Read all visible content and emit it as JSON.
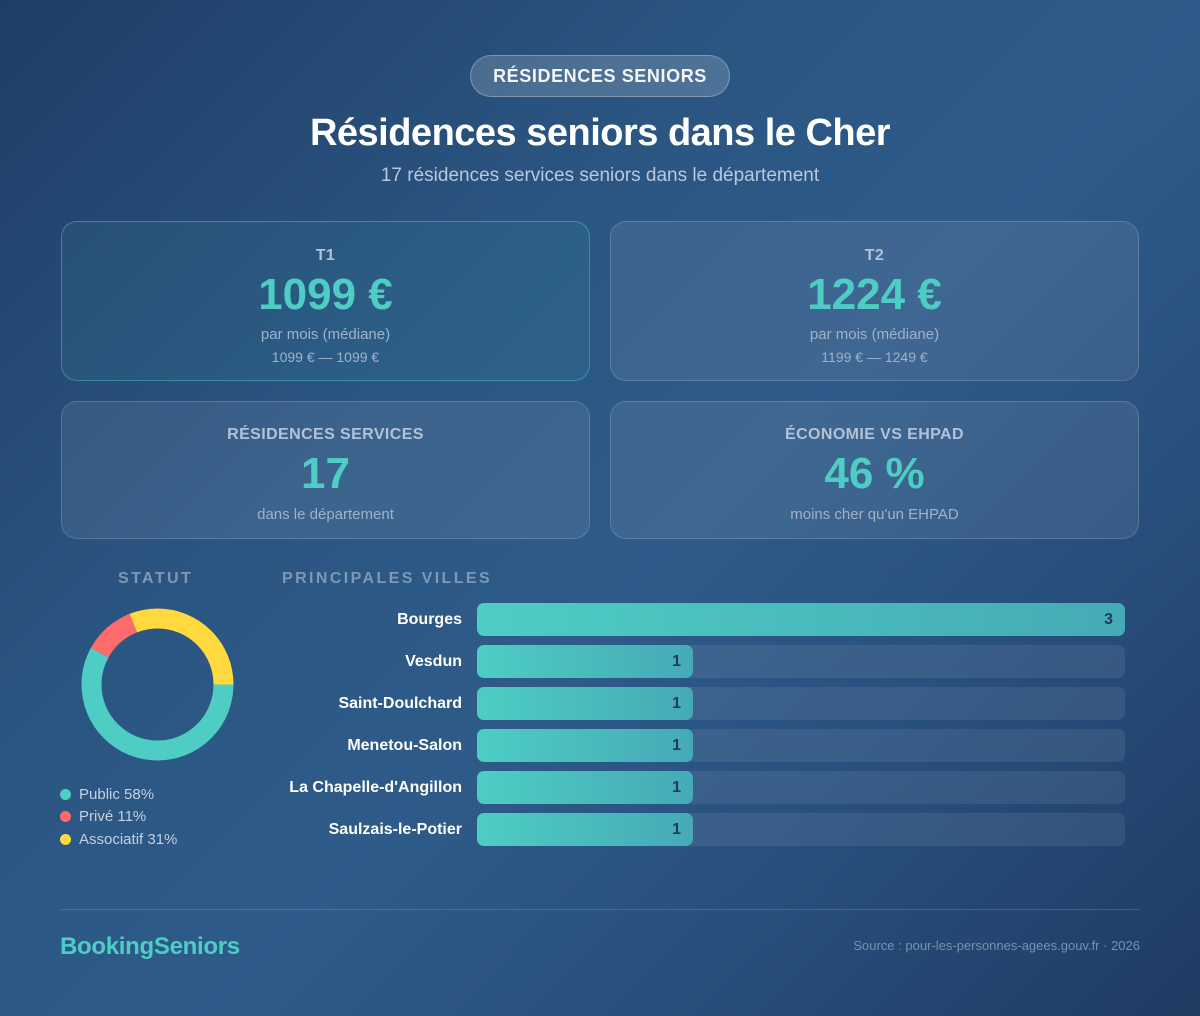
{
  "header": {
    "badge": "RÉSIDENCES SENIORS",
    "title": "Résidences seniors dans le Cher",
    "subtitle": "17 résidences services seniors dans le département"
  },
  "cards": [
    {
      "label": "T1",
      "value": "1099 €",
      "sub": "par mois (médiane)",
      "range": "1099 € — 1099 €",
      "highlight": true
    },
    {
      "label": "T2",
      "value": "1224 €",
      "sub": "par mois (médiane)",
      "range": "1199 € — 1249 €",
      "highlight": false
    },
    {
      "label": "RÉSIDENCES SERVICES",
      "value": "17",
      "sub": "dans le département"
    },
    {
      "label": "ÉCONOMIE VS EHPAD",
      "value": "46 %",
      "sub": "moins cher qu'un EHPAD"
    }
  ],
  "statut": {
    "title": "STATUT",
    "legend": [
      {
        "label": "Public 58%",
        "color": "#4ecdc4"
      },
      {
        "label": "Privé 11%",
        "color": "#ff6b6b"
      },
      {
        "label": "Associatif 31%",
        "color": "#ffd93d"
      }
    ]
  },
  "villes": {
    "title": "PRINCIPALES VILLES",
    "rows": [
      {
        "city": "Bourges",
        "count": "3"
      },
      {
        "city": "Vesdun",
        "count": "1"
      },
      {
        "city": "Saint-Doulchard",
        "count": "1"
      },
      {
        "city": "Menetou-Salon",
        "count": "1"
      },
      {
        "city": "La Chapelle-d'Angillon",
        "count": "1"
      },
      {
        "city": "Saulzais-le-Potier",
        "count": "1"
      }
    ]
  },
  "footer": {
    "brand": "BookingSeniors",
    "source": "Source : pour-les-personnes-agees.gouv.fr · 2026"
  },
  "colors": {
    "accent": "#4ecdc4",
    "public": "#4ecdc4",
    "prive": "#ff6b6b",
    "associatif": "#ffd93d"
  },
  "chart_data": [
    {
      "type": "pie",
      "title": "STATUT",
      "variant": "donut",
      "categories": [
        "Public",
        "Privé",
        "Associatif"
      ],
      "values": [
        58,
        11,
        31
      ],
      "unit": "%",
      "colors": [
        "#4ecdc4",
        "#ff6b6b",
        "#ffd93d"
      ],
      "legend_position": "bottom"
    },
    {
      "type": "bar",
      "orientation": "horizontal",
      "title": "PRINCIPALES VILLES",
      "categories": [
        "Bourges",
        "Vesdun",
        "Saint-Doulchard",
        "Menetou-Salon",
        "La Chapelle-d'Angillon",
        "Saulzais-le-Potier"
      ],
      "values": [
        3,
        1,
        1,
        1,
        1,
        1
      ],
      "xlabel": "",
      "ylabel": "",
      "xlim": [
        0,
        3
      ],
      "grid": false,
      "data_labels": true
    }
  ]
}
